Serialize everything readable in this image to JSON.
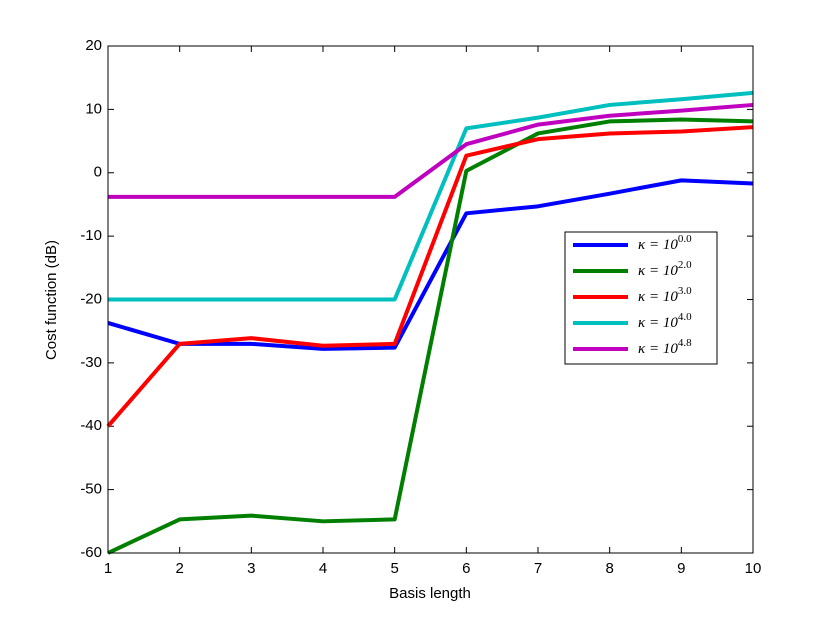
{
  "chart_data": {
    "type": "line",
    "x_label": "Basis length",
    "y_label": "Cost function (dB)",
    "x": [
      1,
      2,
      3,
      4,
      5,
      6,
      7,
      8,
      9,
      10
    ],
    "xlim": [
      1,
      10
    ],
    "xticks": [
      1,
      2,
      3,
      4,
      5,
      6,
      7,
      8,
      9,
      10
    ],
    "ylim": [
      -60,
      20
    ],
    "yticks": [
      -60,
      -50,
      -40,
      -30,
      -20,
      -10,
      0,
      10,
      20
    ],
    "grid": false,
    "legend_position": "right",
    "series": [
      {
        "name": "κ = 10^0.0",
        "color": "#0000ff",
        "values": [
          -23.7,
          -27,
          -27,
          -27.8,
          -27.6,
          -6.4,
          -5.3,
          -3.3,
          -1.2,
          -1.7
        ]
      },
      {
        "name": "κ = 10^2.0",
        "color": "#007f00",
        "values": [
          -60,
          -54.7,
          -54.1,
          -55,
          -54.7,
          0.3,
          6.2,
          8.1,
          8.4,
          8.1
        ]
      },
      {
        "name": "κ = 10^3.0",
        "color": "#ff0000",
        "values": [
          -40,
          -27,
          -26.1,
          -27.3,
          -27,
          2.7,
          5.3,
          6.2,
          6.5,
          7.2
        ]
      },
      {
        "name": "κ = 10^4.0",
        "color": "#00bfbf",
        "values": [
          -20,
          -20,
          -20,
          -20,
          -20,
          7,
          8.7,
          10.7,
          11.6,
          12.6
        ]
      },
      {
        "name": "κ = 10^4.8",
        "color": "#bf00bf",
        "values": [
          -3.8,
          -3.8,
          -3.8,
          -3.8,
          -3.8,
          4.5,
          7.6,
          9,
          9.8,
          10.7
        ]
      }
    ]
  }
}
